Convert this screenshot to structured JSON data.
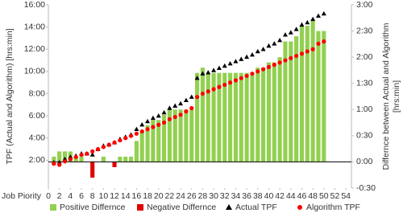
{
  "chart_data": {
    "type": "combo",
    "x_label": "Job Piority",
    "y_label": "TPF (Actual and Algorithm) [hrs:min]",
    "y2_label": [
      "Differnce between Actual and Algorithm",
      "[hrs:min]"
    ],
    "x": [
      1,
      2,
      3,
      4,
      5,
      6,
      7,
      8,
      9,
      10,
      11,
      12,
      13,
      14,
      15,
      16,
      17,
      18,
      19,
      20,
      21,
      22,
      23,
      24,
      25,
      26,
      27,
      28,
      29,
      30,
      31,
      32,
      33,
      34,
      35,
      36,
      37,
      38,
      39,
      40,
      41,
      42,
      43,
      44,
      45,
      46,
      47,
      48,
      49,
      50
    ],
    "xlim": [
      0,
      55
    ],
    "xticks": [
      0,
      2,
      4,
      6,
      8,
      10,
      12,
      14,
      16,
      18,
      20,
      22,
      24,
      26,
      28,
      30,
      32,
      34,
      36,
      38,
      40,
      42,
      44,
      46,
      48,
      50,
      52,
      54
    ],
    "ylim": [
      -0.5,
      16
    ],
    "yticks": [
      {
        "value": 2,
        "label": "2:00"
      },
      {
        "value": 4,
        "label": "4:00"
      },
      {
        "value": 6,
        "label": "6:00"
      },
      {
        "value": 8,
        "label": "8:00"
      },
      {
        "value": 10,
        "label": "10:00"
      },
      {
        "value": 12,
        "label": "12:00"
      },
      {
        "value": 14,
        "label": "14:00"
      },
      {
        "value": 16,
        "label": "16:00"
      }
    ],
    "y2lim": [
      -0.5,
      3
    ],
    "y2ticks": [
      {
        "value": -0.5,
        "label": "-0:30"
      },
      {
        "value": 0,
        "label": "0:00"
      },
      {
        "value": 0.5,
        "label": "0:30"
      },
      {
        "value": 1,
        "label": "1:00"
      },
      {
        "value": 1.5,
        "label": "1:30"
      },
      {
        "value": 2,
        "label": "2:00"
      },
      {
        "value": 2.5,
        "label": "2:30"
      },
      {
        "value": 3,
        "label": "3:00"
      }
    ],
    "series": [
      {
        "name": "Positive Differnce",
        "kind": "bar",
        "axis": "y2",
        "color": "#92d050",
        "values": [
          0.1,
          0.2,
          0.2,
          0.2,
          0.1,
          0.1,
          0,
          null,
          0,
          0.1,
          0,
          null,
          0.1,
          0.1,
          0.1,
          0.4,
          0.6,
          0.7,
          0.8,
          0.8,
          0.9,
          1.0,
          1.0,
          1.0,
          1.0,
          1.0,
          1.7,
          1.8,
          1.7,
          1.7,
          1.7,
          1.7,
          1.7,
          1.7,
          1.7,
          1.7,
          1.7,
          1.8,
          1.8,
          1.9,
          1.9,
          2.0,
          2.3,
          2.3,
          2.4,
          2.6,
          2.6,
          2.7,
          2.5,
          2.5
        ]
      },
      {
        "name": "Negative Differnce",
        "kind": "bar",
        "axis": "y2",
        "color": "#e00000",
        "values": [
          null,
          null,
          null,
          null,
          null,
          null,
          null,
          -0.3,
          null,
          null,
          null,
          -0.1,
          null,
          null,
          null,
          null,
          null,
          null,
          null,
          null,
          null,
          null,
          null,
          null,
          null,
          null,
          null,
          null,
          null,
          null,
          null,
          null,
          null,
          null,
          null,
          null,
          null,
          null,
          null,
          null,
          null,
          null,
          null,
          null,
          null,
          null,
          null,
          null,
          null,
          null
        ]
      },
      {
        "name": "Actual TPF",
        "kind": "triangle",
        "color": "#000000",
        "values": [
          1.8,
          1.8,
          2.1,
          2.3,
          2.4,
          2.6,
          2.6,
          2.5,
          3.0,
          3.3,
          3.4,
          3.6,
          3.9,
          4.1,
          4.3,
          4.8,
          5.2,
          5.5,
          5.8,
          6.0,
          6.3,
          6.7,
          6.9,
          7.1,
          7.4,
          7.7,
          9.4,
          9.8,
          9.9,
          10.1,
          10.3,
          10.5,
          10.7,
          10.9,
          11.1,
          11.3,
          11.5,
          11.8,
          12.0,
          12.3,
          12.5,
          12.8,
          13.3,
          13.5,
          13.8,
          14.2,
          14.4,
          14.7,
          15.0,
          15.2
        ]
      },
      {
        "name": "Algorithm TPF",
        "kind": "circle",
        "color": "#ff0000",
        "values": [
          1.7,
          1.6,
          1.9,
          2.1,
          2.3,
          2.5,
          2.6,
          2.8,
          3.0,
          3.2,
          3.4,
          3.6,
          3.8,
          4.0,
          4.2,
          4.4,
          4.6,
          4.8,
          5.0,
          5.2,
          5.4,
          5.7,
          5.9,
          6.1,
          6.4,
          6.7,
          7.7,
          8.0,
          8.2,
          8.4,
          8.6,
          8.8,
          9.0,
          9.2,
          9.4,
          9.6,
          9.8,
          10.0,
          10.2,
          10.4,
          10.6,
          10.8,
          11.0,
          11.2,
          11.4,
          11.6,
          11.8,
          12.0,
          12.5,
          12.7
        ]
      }
    ]
  }
}
